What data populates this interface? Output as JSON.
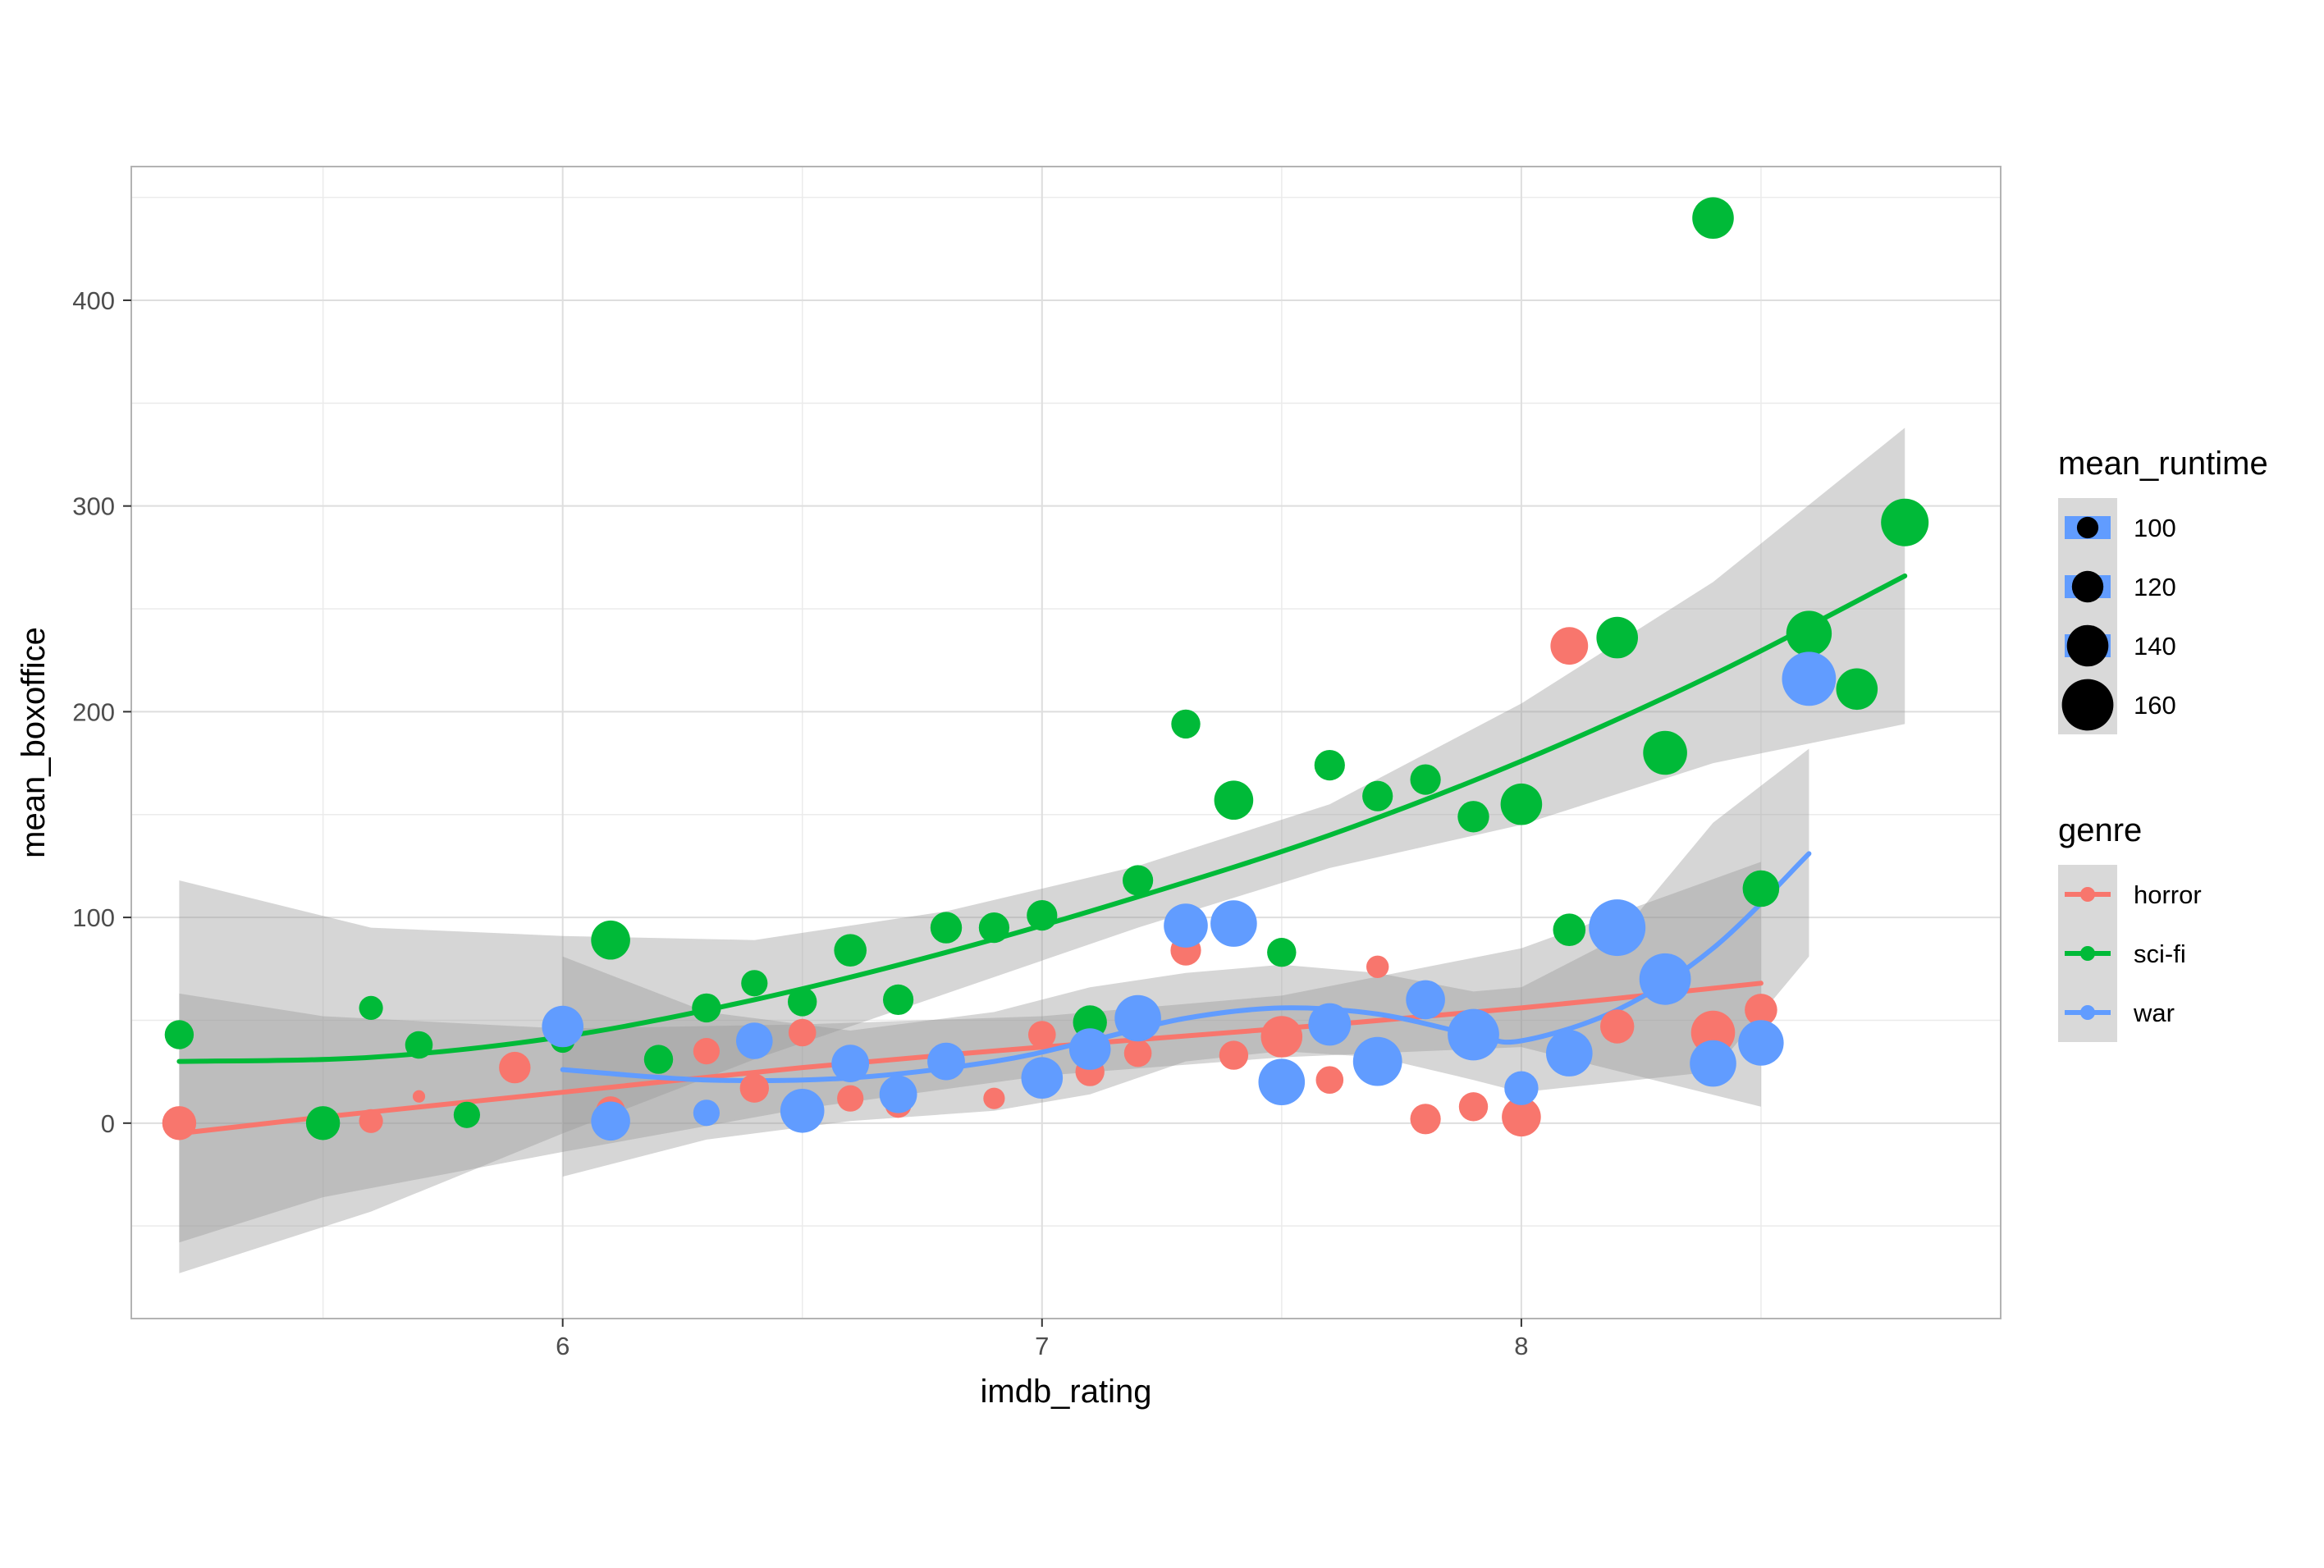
{
  "chart_data": {
    "type": "scatter",
    "title": "",
    "xlabel": "imdb_rating",
    "ylabel": "mean_boxoffice",
    "xlim": [
      5.1,
      9.0
    ],
    "ylim": [
      -95,
      465
    ],
    "x_ticks": [
      6,
      7,
      8
    ],
    "y_ticks": [
      0,
      100,
      200,
      300,
      400
    ],
    "grid": true,
    "theme": "light",
    "colors": {
      "horror": "#F8766D",
      "sci-fi": "#00BA38",
      "war": "#619CFF",
      "ribbon": "#999999"
    },
    "legend": {
      "position": "right",
      "size_title": "mean_runtime",
      "size_values": [
        100,
        120,
        140,
        160
      ],
      "color_title": "genre",
      "color_values": [
        "horror",
        "sci-fi",
        "war"
      ]
    },
    "series": [
      {
        "name": "horror",
        "points": [
          [
            5.2,
            0,
            125
          ],
          [
            5.6,
            1,
            105
          ],
          [
            5.7,
            13,
            82
          ],
          [
            5.8,
            6,
            95
          ],
          [
            5.9,
            27,
            120
          ],
          [
            6.1,
            6,
            115
          ],
          [
            6.3,
            35,
            110
          ],
          [
            6.4,
            17,
            115
          ],
          [
            6.5,
            44,
            112
          ],
          [
            6.6,
            12,
            110
          ],
          [
            6.7,
            9,
            110
          ],
          [
            6.8,
            28,
            105
          ],
          [
            6.9,
            12,
            100
          ],
          [
            7.0,
            43,
            112
          ],
          [
            7.1,
            25,
            115
          ],
          [
            7.2,
            34,
            112
          ],
          [
            7.3,
            84,
            118
          ],
          [
            7.4,
            33,
            115
          ],
          [
            7.5,
            42,
            140
          ],
          [
            7.6,
            21,
            112
          ],
          [
            7.7,
            76,
            102
          ],
          [
            7.8,
            2,
            118
          ],
          [
            7.9,
            8,
            115
          ],
          [
            8.0,
            3,
            135
          ],
          [
            8.1,
            232,
            132
          ],
          [
            8.2,
            47,
            125
          ],
          [
            8.4,
            44,
            145
          ],
          [
            8.5,
            55,
            122
          ]
        ],
        "trend": [
          [
            5.2,
            -5
          ],
          [
            5.5,
            3
          ],
          [
            6.0,
            15
          ],
          [
            6.5,
            27
          ],
          [
            7.0,
            37
          ],
          [
            7.5,
            46
          ],
          [
            8.0,
            56
          ],
          [
            8.5,
            68
          ]
        ],
        "band": [
          [
            5.2,
            -58,
            63
          ],
          [
            5.5,
            -36,
            52
          ],
          [
            6.0,
            -14,
            46
          ],
          [
            6.5,
            7,
            48
          ],
          [
            7.0,
            23,
            52
          ],
          [
            7.5,
            32,
            62
          ],
          [
            8.0,
            37,
            85
          ],
          [
            8.5,
            8,
            127
          ]
        ]
      },
      {
        "name": "sci-fi",
        "points": [
          [
            5.2,
            43,
            115
          ],
          [
            5.5,
            0,
            125
          ],
          [
            5.6,
            56,
            105
          ],
          [
            5.7,
            38,
            112
          ],
          [
            5.8,
            4,
            110
          ],
          [
            6.0,
            40,
            105
          ],
          [
            6.1,
            89,
            135
          ],
          [
            6.2,
            31,
            115
          ],
          [
            6.3,
            56,
            115
          ],
          [
            6.4,
            68,
            110
          ],
          [
            6.5,
            59,
            115
          ],
          [
            6.6,
            84,
            122
          ],
          [
            6.7,
            60,
            118
          ],
          [
            6.8,
            95,
            120
          ],
          [
            6.9,
            95,
            118
          ],
          [
            7.0,
            101,
            118
          ],
          [
            7.1,
            49,
            125
          ],
          [
            7.2,
            118,
            118
          ],
          [
            7.3,
            194,
            115
          ],
          [
            7.4,
            157,
            135
          ],
          [
            7.5,
            83,
            115
          ],
          [
            7.6,
            174,
            118
          ],
          [
            7.7,
            159,
            118
          ],
          [
            7.8,
            167,
            118
          ],
          [
            7.9,
            149,
            120
          ],
          [
            8.0,
            155,
            140
          ],
          [
            8.1,
            94,
            122
          ],
          [
            8.2,
            236,
            140
          ],
          [
            8.3,
            180,
            145
          ],
          [
            8.4,
            440,
            140
          ],
          [
            8.5,
            114,
            130
          ],
          [
            8.6,
            238,
            148
          ],
          [
            8.7,
            211,
            140
          ],
          [
            8.8,
            292,
            152
          ]
        ],
        "trend": [
          [
            5.2,
            30
          ],
          [
            5.6,
            32
          ],
          [
            6.0,
            42
          ],
          [
            6.4,
            60
          ],
          [
            6.8,
            83
          ],
          [
            7.2,
            110
          ],
          [
            7.6,
            140
          ],
          [
            8.0,
            176
          ],
          [
            8.4,
            218
          ],
          [
            8.8,
            266
          ]
        ],
        "band": [
          [
            5.2,
            -73,
            118
          ],
          [
            5.6,
            -43,
            95
          ],
          [
            6.0,
            -5,
            91
          ],
          [
            6.4,
            31,
            89
          ],
          [
            6.8,
            63,
            103
          ],
          [
            7.2,
            95,
            125
          ],
          [
            7.6,
            124,
            155
          ],
          [
            8.0,
            145,
            204
          ],
          [
            8.4,
            175,
            263
          ],
          [
            8.8,
            194,
            338
          ]
        ]
      },
      {
        "name": "war",
        "points": [
          [
            6.0,
            47,
            140
          ],
          [
            6.1,
            1,
            135
          ],
          [
            6.3,
            5,
            110
          ],
          [
            6.4,
            40,
            130
          ],
          [
            6.5,
            6,
            145
          ],
          [
            6.6,
            29,
            132
          ],
          [
            6.7,
            14,
            132
          ],
          [
            6.8,
            30,
            132
          ],
          [
            7.0,
            22,
            140
          ],
          [
            7.1,
            36,
            140
          ],
          [
            7.2,
            51,
            150
          ],
          [
            7.3,
            96,
            145
          ],
          [
            7.4,
            97,
            150
          ],
          [
            7.5,
            20,
            150
          ],
          [
            7.6,
            48,
            142
          ],
          [
            7.7,
            30,
            155
          ],
          [
            7.8,
            60,
            135
          ],
          [
            7.9,
            43,
            160
          ],
          [
            8.0,
            17,
            125
          ],
          [
            8.1,
            34,
            150
          ],
          [
            8.2,
            95,
            170
          ],
          [
            8.3,
            70,
            160
          ],
          [
            8.4,
            29,
            150
          ],
          [
            8.5,
            39,
            148
          ],
          [
            8.6,
            216,
            165
          ]
        ],
        "trend": [
          [
            6.0,
            26
          ],
          [
            6.3,
            21
          ],
          [
            6.6,
            22
          ],
          [
            6.9,
            30
          ],
          [
            7.1,
            40
          ],
          [
            7.3,
            51
          ],
          [
            7.5,
            56
          ],
          [
            7.7,
            53
          ],
          [
            7.9,
            43
          ],
          [
            8.0,
            40
          ],
          [
            8.2,
            55
          ],
          [
            8.4,
            85
          ],
          [
            8.6,
            131
          ]
        ],
        "band": [
          [
            6.0,
            -26,
            81
          ],
          [
            6.3,
            -8,
            54
          ],
          [
            6.6,
            1,
            45
          ],
          [
            6.9,
            6,
            54
          ],
          [
            7.1,
            14,
            66
          ],
          [
            7.3,
            30,
            73
          ],
          [
            7.5,
            35,
            77
          ],
          [
            7.7,
            32,
            73
          ],
          [
            7.9,
            21,
            64
          ],
          [
            8.0,
            15,
            66
          ],
          [
            8.2,
            20,
            90
          ],
          [
            8.4,
            25,
            146
          ],
          [
            8.6,
            81,
            182
          ]
        ]
      }
    ]
  }
}
